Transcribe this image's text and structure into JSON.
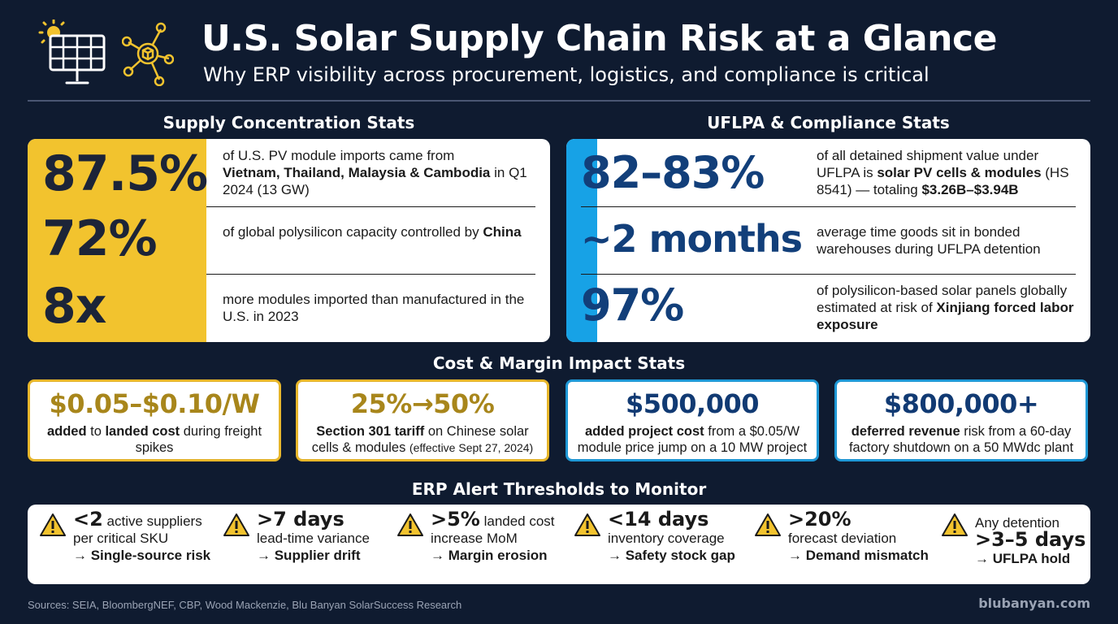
{
  "header": {
    "title": "U.S. Solar Supply Chain Risk at a Glance",
    "subtitle": "Why ERP visibility across procurement, logistics, and compliance is critical",
    "icons": [
      "solar-panel-icon",
      "network-icon"
    ]
  },
  "supply": {
    "title": "Supply Concentration Stats",
    "stats": [
      {
        "value": "87.5%",
        "text": "of U.S. PV module imports came from",
        "bold": "Vietnam, Thailand, Malaysia & Cambodia",
        "text2": " in Q1 2024 (13 GW)"
      },
      {
        "value": "72%",
        "text": "of global polysilicon capacity controlled by ",
        "bold": "China",
        "text2": ""
      },
      {
        "value": "8x",
        "text": "more modules imported than manufactured in the U.S. in 2023",
        "bold": "",
        "text2": ""
      }
    ]
  },
  "uflpa": {
    "title": "UFLPA & Compliance Stats",
    "stats": [
      {
        "value": "82–83%",
        "text": "of all detained shipment value under UFLPA is ",
        "bold": "solar PV cells & modules",
        "text2": " (HS 8541) — totaling ",
        "bold2": "$3.26B–$3.94B"
      },
      {
        "value": "~2 months",
        "text": "average time goods sit in bonded warehouses during UFLPA detention"
      },
      {
        "value": "97%",
        "text": "of polysilicon-based solar panels globally estimated at risk of ",
        "bold": "Xinjiang forced labor exposure"
      }
    ]
  },
  "cost": {
    "title": "Cost & Margin Impact Stats",
    "cards": [
      {
        "value": "$0.05–$0.10/W",
        "bold": "added",
        "text": " to ",
        "bold2": "landed cost",
        "text2": " during freight spikes"
      },
      {
        "value": "25%→50%",
        "bold": "Section 301 tariff",
        "text": " on Chinese solar cells & modules ",
        "small": "(effective Sept 27, 2024)"
      },
      {
        "value": "$500,000",
        "bold": "added project cost",
        "text": " from a $0.05/W module price jump on a 10 MW project"
      },
      {
        "value": "$800,000+",
        "bold": "deferred revenue",
        "text": " risk from a 60-day factory shutdown on a 50 MWdc plant"
      }
    ]
  },
  "alerts": {
    "title": "ERP Alert Thresholds to Monitor",
    "items": [
      {
        "key": "<2",
        "line1": " active suppliers",
        "line2": "per critical SKU",
        "result": "→ Single-source risk"
      },
      {
        "key": ">7 days",
        "line1": "",
        "line2": "lead-time variance",
        "result": "→ Supplier drift"
      },
      {
        "key": ">5%",
        "line1": " landed cost",
        "line2": "increase MoM",
        "result": "→ Margin erosion"
      },
      {
        "key": "<14 days",
        "line1": "",
        "line2": "inventory coverage",
        "result": "→ Safety stock gap"
      },
      {
        "key": ">20%",
        "line1": "",
        "line2": "forecast deviation",
        "result": "→ Demand mismatch"
      },
      {
        "pre": "Any detention",
        "key": ">3–5 days",
        "result": "→ UFLPA hold"
      }
    ]
  },
  "footer": {
    "sources": "Sources: SEIA, BloombergNEF, CBP, Wood Mackenzie, Blu Banyan SolarSuccess Research",
    "site": "blubanyan.com"
  },
  "colors": {
    "background": "#0f1b30",
    "gold": "#f2c32e",
    "blue": "#17a2e6",
    "navy": "#123f7a"
  }
}
